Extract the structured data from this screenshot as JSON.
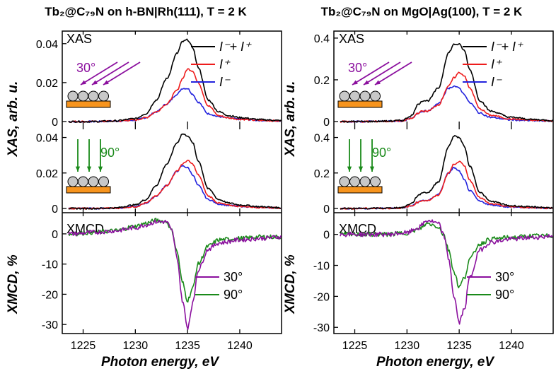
{
  "colors": {
    "total": "#000000",
    "plus": "#ee1c1c",
    "minus": "#2222dd",
    "deg30": "#8b0f9e",
    "deg90": "#1a8a1a",
    "substrate": "#f7941d",
    "molecule": "#c8c8c8"
  },
  "figure": {
    "left_title": "Tb₂@C₇₉N on h-BN|Rh(111), T = 2 K",
    "right_title": "Tb₂@C₇₉N on MgO|Ag(100), T = 2 K",
    "xas_label": "XAS, arb. u.",
    "xmcd_label": "XMCD, %",
    "xlabel": "Photon energy, eV",
    "panel_xas": "XAS",
    "panel_xmcd": "XMCD",
    "angle30": "30°",
    "angle90": "90°",
    "legend_total": "I⁻+ I⁺",
    "legend_plus": "I⁺",
    "legend_minus": "I⁻",
    "legend_30": "30°",
    "legend_90": "90°"
  },
  "chart_data": [
    {
      "type": "line",
      "panel": "left-xas-30",
      "x": [
        1224,
        1226,
        1228,
        1230,
        1231,
        1232,
        1233,
        1234,
        1234.5,
        1235,
        1235.5,
        1236,
        1237,
        1238,
        1239,
        1240,
        1242,
        1244
      ],
      "series": [
        {
          "name": "I⁻+ I⁺",
          "values": [
            0,
            0,
            0.0003,
            0.0015,
            0.004,
            0.011,
            0.022,
            0.035,
            0.041,
            0.042,
            0.038,
            0.028,
            0.011,
            0.005,
            0.003,
            0.002,
            0.001,
            0.0005
          ]
        },
        {
          "name": "I⁺",
          "values": [
            0,
            0,
            0.0002,
            0.0008,
            0.002,
            0.005,
            0.009,
            0.016,
            0.022,
            0.027,
            0.026,
            0.02,
            0.008,
            0.003,
            0.0018,
            0.0012,
            0.0006,
            0.0003
          ]
        },
        {
          "name": "I⁻",
          "values": [
            0,
            0,
            0.0002,
            0.0007,
            0.002,
            0.005,
            0.009,
            0.014,
            0.017,
            0.017,
            0.014,
            0.01,
            0.004,
            0.0025,
            0.0017,
            0.0012,
            0.0006,
            0.0003
          ]
        }
      ],
      "xlim": [
        1223,
        1244
      ],
      "ylim": [
        0,
        0.045
      ],
      "yticks": [
        0,
        0.02,
        0.04
      ],
      "ytick_labels": [
        "0",
        "0.02",
        "0.04"
      ],
      "angle": "30°"
    },
    {
      "type": "line",
      "panel": "left-xas-90",
      "x": [
        1224,
        1226,
        1228,
        1230,
        1231,
        1232,
        1233,
        1234,
        1234.5,
        1235,
        1235.5,
        1236,
        1237,
        1238,
        1239,
        1240,
        1242,
        1244
      ],
      "series": [
        {
          "name": "I⁻+ I⁺",
          "values": [
            0,
            0,
            0.0003,
            0.002,
            0.005,
            0.013,
            0.025,
            0.037,
            0.042,
            0.041,
            0.037,
            0.027,
            0.011,
            0.005,
            0.003,
            0.002,
            0.001,
            0.0004
          ]
        },
        {
          "name": "I⁺",
          "values": [
            0,
            0,
            0.0002,
            0.001,
            0.003,
            0.007,
            0.013,
            0.021,
            0.025,
            0.027,
            0.025,
            0.019,
            0.007,
            0.003,
            0.0018,
            0.0012,
            0.0006,
            0.0003
          ]
        },
        {
          "name": "I⁻",
          "values": [
            0,
            0,
            0.0002,
            0.001,
            0.003,
            0.007,
            0.013,
            0.021,
            0.024,
            0.023,
            0.019,
            0.013,
            0.005,
            0.0025,
            0.0017,
            0.0012,
            0.0006,
            0.0003
          ]
        }
      ],
      "xlim": [
        1223,
        1244
      ],
      "ylim": [
        0,
        0.045
      ],
      "yticks": [
        0,
        0.02,
        0.04
      ],
      "ytick_labels": [
        "0",
        "0.02",
        "0.04"
      ],
      "angle": "90°"
    },
    {
      "type": "line",
      "panel": "left-xmcd",
      "x": [
        1224,
        1226,
        1228,
        1230,
        1231,
        1232,
        1233,
        1233.5,
        1234,
        1234.5,
        1235,
        1235.5,
        1236,
        1237,
        1238,
        1240,
        1242,
        1244
      ],
      "series": [
        {
          "name": "30°",
          "values": [
            0,
            0.5,
            1,
            2,
            3,
            4,
            4,
            1,
            -8,
            -22,
            -31,
            -23,
            -12,
            -5,
            -3,
            -2,
            -1.5,
            -1
          ]
        },
        {
          "name": "90°",
          "values": [
            0,
            0.5,
            1,
            2.5,
            3.5,
            4.5,
            4,
            1,
            -6,
            -16,
            -22,
            -18,
            -10,
            -4,
            -2,
            -1.5,
            -1,
            -1
          ]
        }
      ],
      "xlim": [
        1223,
        1244
      ],
      "ylim": [
        -33,
        7
      ],
      "yticks": [
        -30,
        -20,
        -10,
        0
      ],
      "xticks": [
        1225,
        1230,
        1235,
        1240
      ]
    },
    {
      "type": "line",
      "panel": "right-xas-30",
      "x": [
        1224,
        1226,
        1228,
        1229.5,
        1230.5,
        1231,
        1231.5,
        1232,
        1233,
        1234,
        1234.5,
        1235,
        1235.5,
        1236,
        1237,
        1238,
        1240,
        1242,
        1244
      ],
      "series": [
        {
          "name": "I⁻+ I⁺",
          "values": [
            0,
            0,
            0.002,
            0.005,
            0.03,
            0.08,
            0.1,
            0.1,
            0.16,
            0.33,
            0.37,
            0.37,
            0.34,
            0.25,
            0.1,
            0.05,
            0.02,
            0.01,
            0.005
          ]
        },
        {
          "name": "I⁺",
          "values": [
            0,
            0,
            0.001,
            0.003,
            0.015,
            0.04,
            0.05,
            0.05,
            0.08,
            0.17,
            0.21,
            0.235,
            0.22,
            0.16,
            0.06,
            0.03,
            0.012,
            0.006,
            0.003
          ]
        },
        {
          "name": "I⁻",
          "values": [
            0,
            0,
            0.001,
            0.003,
            0.015,
            0.04,
            0.05,
            0.05,
            0.085,
            0.16,
            0.17,
            0.16,
            0.13,
            0.09,
            0.04,
            0.02,
            0.008,
            0.004,
            0.002
          ]
        }
      ],
      "xlim": [
        1223,
        1244
      ],
      "ylim": [
        0,
        0.42
      ],
      "yticks": [
        0,
        0.2,
        0.4
      ],
      "ytick_labels": [
        "0",
        "0.2",
        "0.4"
      ],
      "angle": "30°"
    },
    {
      "type": "line",
      "panel": "right-xas-90",
      "x": [
        1224,
        1226,
        1228,
        1229.5,
        1230.5,
        1231,
        1231.5,
        1232,
        1233,
        1234,
        1234.5,
        1235,
        1235.5,
        1236,
        1237,
        1238,
        1240,
        1242,
        1244
      ],
      "series": [
        {
          "name": "I⁻+ I⁺",
          "values": [
            0,
            0,
            0.002,
            0.005,
            0.03,
            0.07,
            0.09,
            0.09,
            0.15,
            0.35,
            0.41,
            0.4,
            0.35,
            0.24,
            0.09,
            0.04,
            0.015,
            0.008,
            0.004
          ]
        },
        {
          "name": "I⁺",
          "values": [
            0,
            0,
            0.001,
            0.003,
            0.015,
            0.035,
            0.045,
            0.045,
            0.075,
            0.2,
            0.25,
            0.265,
            0.24,
            0.16,
            0.06,
            0.025,
            0.01,
            0.005,
            0.002
          ]
        },
        {
          "name": "I⁻",
          "values": [
            0,
            0,
            0.001,
            0.003,
            0.015,
            0.035,
            0.045,
            0.045,
            0.08,
            0.2,
            0.23,
            0.21,
            0.16,
            0.1,
            0.04,
            0.02,
            0.008,
            0.004,
            0.002
          ]
        }
      ],
      "xlim": [
        1223,
        1244
      ],
      "ylim": [
        0,
        0.45
      ],
      "yticks": [
        0,
        0.2,
        0.4
      ],
      "ytick_labels": [
        "0",
        "0.2",
        "0.4"
      ],
      "angle": "90°"
    },
    {
      "type": "line",
      "panel": "right-xmcd",
      "x": [
        1224,
        1226,
        1228,
        1230,
        1231,
        1232,
        1233,
        1233.5,
        1234,
        1234.5,
        1235,
        1235.5,
        1236,
        1237,
        1238,
        1240,
        1242,
        1244
      ],
      "series": [
        {
          "name": "30°",
          "values": [
            0,
            0,
            0,
            0.5,
            2,
            4.5,
            3.5,
            0,
            -8,
            -20,
            -28.5,
            -24,
            -14,
            -5,
            -2.5,
            -1.5,
            -1,
            -0.5
          ]
        },
        {
          "name": "90°",
          "values": [
            0,
            0,
            0,
            0.5,
            1.5,
            3.5,
            2.5,
            0,
            -5,
            -12,
            -17,
            -14,
            -8,
            -3,
            -1.5,
            -1,
            -0.5,
            -0.5
          ]
        }
      ],
      "xlim": [
        1223,
        1244
      ],
      "ylim": [
        -32,
        7
      ],
      "yticks": [
        -30,
        -20,
        -10,
        0
      ],
      "xticks": [
        1225,
        1230,
        1235,
        1240
      ]
    }
  ]
}
